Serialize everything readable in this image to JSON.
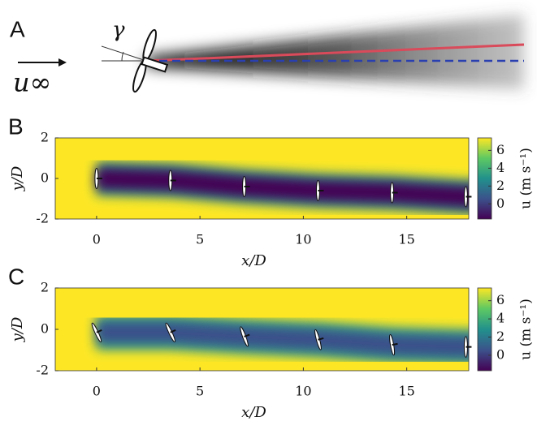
{
  "panel_a": {
    "label": "A",
    "angle_label": "γ",
    "inflow_label": "u∞"
  },
  "chart_data": [
    {
      "type": "heatmap",
      "panel_label": "B",
      "xlabel": "x/D",
      "ylabel": "y/D",
      "xlim": [
        -2,
        18
      ],
      "ylim": [
        -2,
        2
      ],
      "xticks": [
        0,
        5,
        10,
        15
      ],
      "yticks": [
        -2,
        0,
        2
      ],
      "colorbar": {
        "label": "u (m s⁻¹)",
        "clim": [
          -1.7,
          7.4
        ],
        "ticks": [
          0,
          2,
          4,
          6
        ]
      },
      "colors": {
        "background": "#fde725",
        "wake": "#440154",
        "halo": "#2a8c8c"
      },
      "turbines": {
        "x": [
          0,
          3.57,
          7.14,
          10.71,
          14.29,
          17.86
        ],
        "y": [
          0,
          -0.1,
          -0.4,
          -0.6,
          -0.7,
          -0.9
        ],
        "yaw": [
          0,
          0,
          0,
          0,
          0,
          0
        ]
      }
    },
    {
      "type": "heatmap",
      "panel_label": "C",
      "xlabel": "x/D",
      "ylabel": "y/D",
      "xlim": [
        -2,
        18
      ],
      "ylim": [
        -2,
        2
      ],
      "xticks": [
        0,
        5,
        10,
        15
      ],
      "yticks": [
        -2,
        0,
        2
      ],
      "colorbar": {
        "label": "u (m s⁻¹)",
        "clim": [
          -1.7,
          7.4
        ],
        "ticks": [
          0,
          2,
          4,
          6
        ]
      },
      "colors": {
        "background": "#fde725",
        "wake": "#3b4f8a",
        "halo": "#2fa08a"
      },
      "turbines": {
        "x": [
          0,
          3.57,
          7.14,
          10.71,
          14.29,
          17.86
        ],
        "y": [
          -0.15,
          -0.15,
          -0.35,
          -0.5,
          -0.75,
          -0.85
        ],
        "yaw": [
          25,
          25,
          20,
          15,
          10,
          0
        ]
      }
    }
  ]
}
